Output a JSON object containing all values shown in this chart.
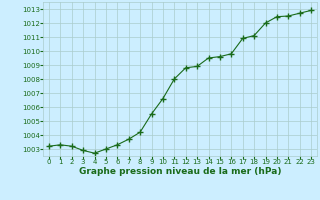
{
  "x": [
    0,
    1,
    2,
    3,
    4,
    5,
    6,
    7,
    8,
    9,
    10,
    11,
    12,
    13,
    14,
    15,
    16,
    17,
    18,
    19,
    20,
    21,
    22,
    23
  ],
  "y": [
    1003.2,
    1003.3,
    1003.2,
    1002.9,
    1002.7,
    1003.0,
    1003.3,
    1003.7,
    1004.2,
    1005.5,
    1006.6,
    1008.0,
    1008.8,
    1008.9,
    1009.5,
    1009.6,
    1009.8,
    1010.9,
    1011.1,
    1012.0,
    1012.45,
    1012.5,
    1012.7,
    1012.9
  ],
  "line_color": "#1a6b1a",
  "marker": "+",
  "markersize": 4,
  "markeredgewidth": 1.0,
  "linewidth": 0.8,
  "bg_color": "#cceeff",
  "grid_color": "#aacccc",
  "xlabel": "Graphe pression niveau de la mer (hPa)",
  "xlabel_color": "#1a6b1a",
  "tick_color": "#1a6b1a",
  "ylim": [
    1002.5,
    1013.5
  ],
  "xlim": [
    -0.5,
    23.5
  ],
  "yticks": [
    1003,
    1004,
    1005,
    1006,
    1007,
    1008,
    1009,
    1010,
    1011,
    1012,
    1013
  ],
  "xticks": [
    0,
    1,
    2,
    3,
    4,
    5,
    6,
    7,
    8,
    9,
    10,
    11,
    12,
    13,
    14,
    15,
    16,
    17,
    18,
    19,
    20,
    21,
    22,
    23
  ],
  "tick_fontsize": 5.0,
  "xlabel_fontsize": 6.5
}
